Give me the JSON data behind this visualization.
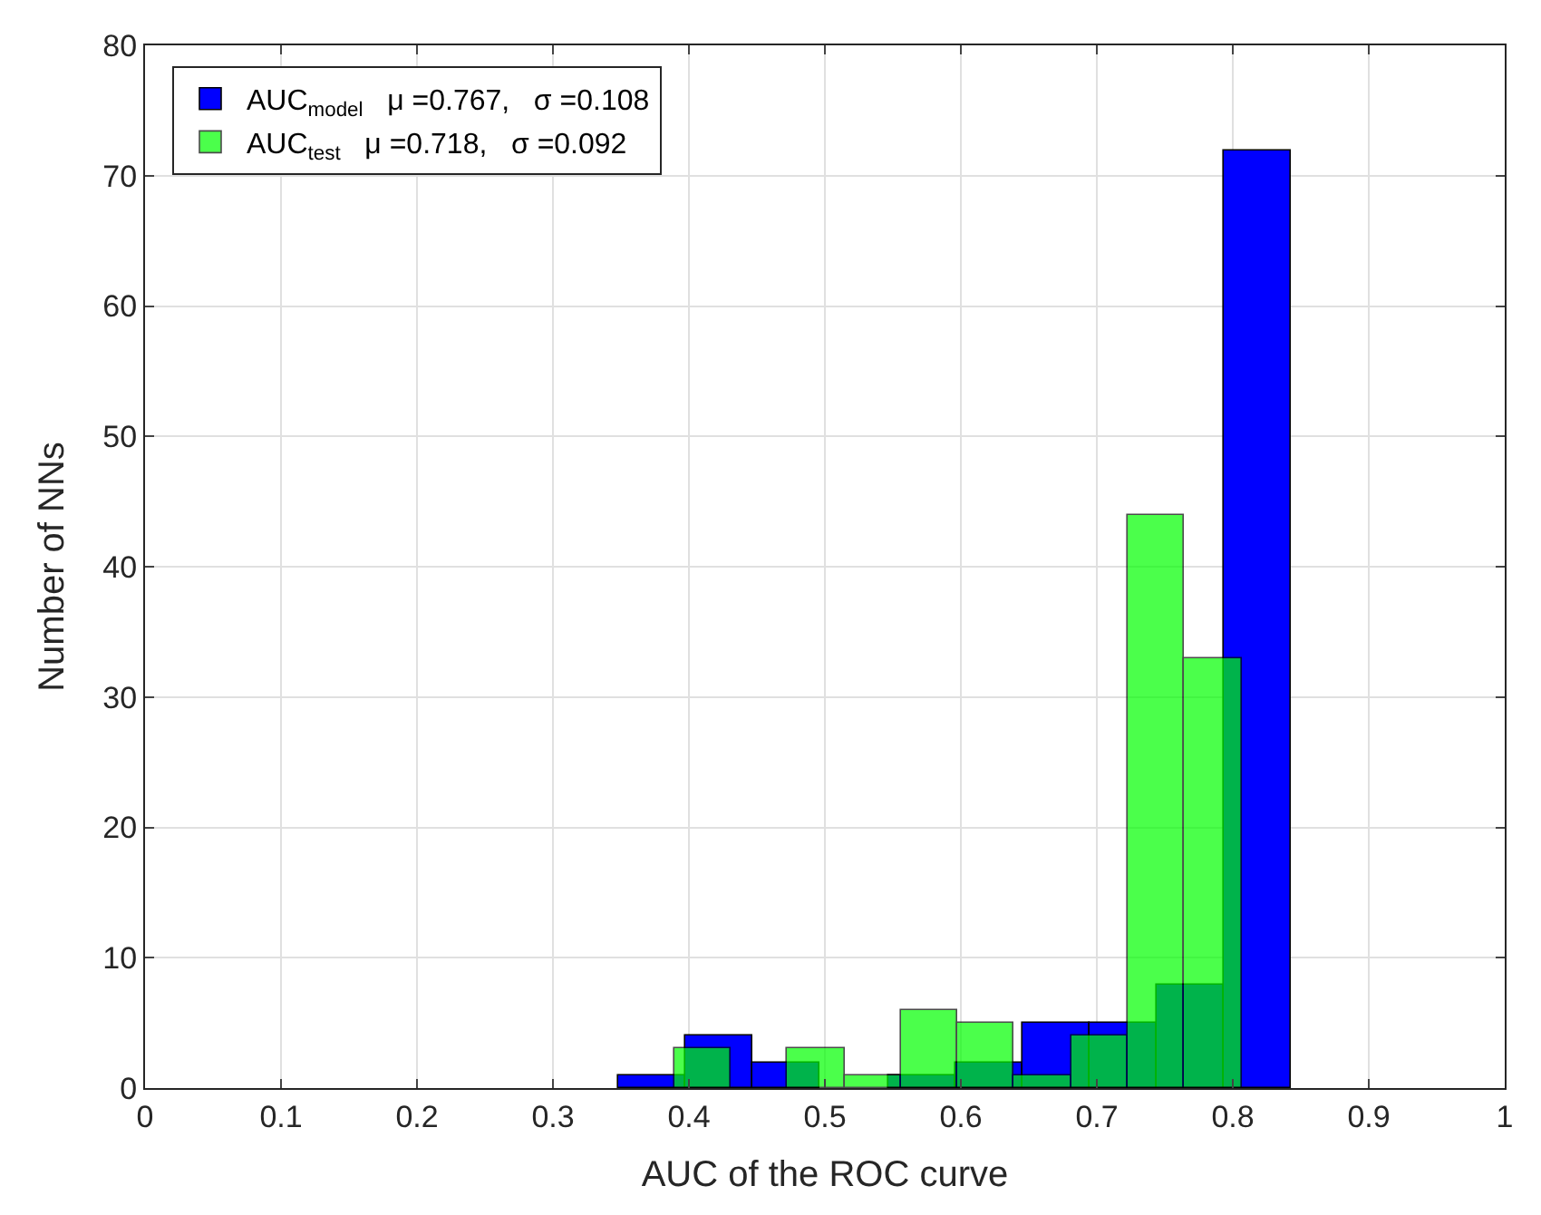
{
  "chart_data": {
    "type": "histogram",
    "xlabel": "AUC of the ROC curve",
    "ylabel": "Number of NNs",
    "bins": [
      0.348,
      0.3975,
      0.447,
      0.4965,
      0.546,
      0.5955,
      0.645,
      0.6945,
      0.744,
      0.7935,
      0.843
    ],
    "series": [
      {
        "name": "AUC$_{model}$   μ =0.767,   σ =0.108",
        "color": "#0000ff",
        "values": [
          1,
          4,
          2,
          0,
          1,
          2,
          5,
          5,
          8,
          72
        ]
      },
      {
        "name": "AUC$_{test}$   μ =0.718,   σ =0.092",
        "color": "#00ff00",
        "bins": [
          0.389,
          0.4307,
          0.4724,
          0.5141,
          0.5558,
          0.5975,
          0.6392,
          0.6809,
          0.7226,
          0.7643,
          0.806
        ],
        "values": [
          3,
          0,
          3,
          1,
          6,
          5,
          1,
          4,
          44,
          33
        ]
      }
    ],
    "xlim": [
      0,
      1
    ],
    "xticks": [
      0,
      0.1,
      0.2,
      0.3,
      0.4,
      0.5,
      0.6,
      0.7,
      0.8,
      0.9,
      1
    ],
    "ylim": [
      0,
      80
    ],
    "yticks": [
      0,
      10,
      20,
      30,
      40,
      50,
      60,
      70,
      80
    ],
    "grid": true,
    "legend": "top left"
  }
}
